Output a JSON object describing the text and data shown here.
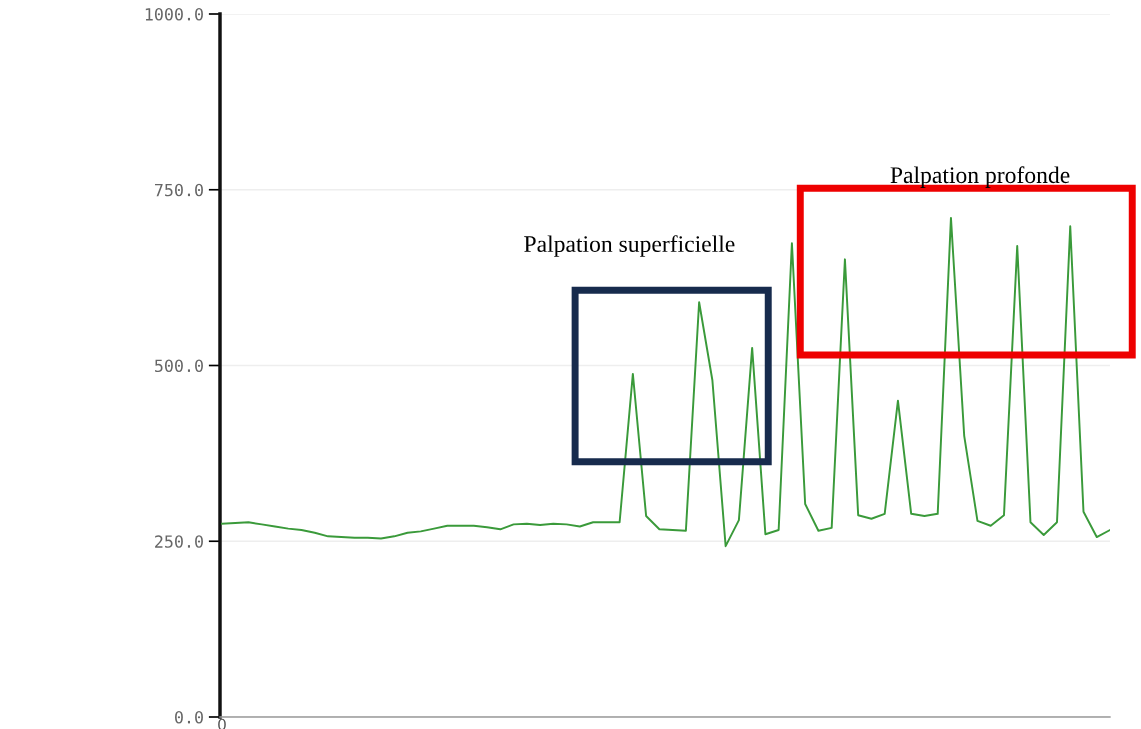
{
  "chart_data": {
    "type": "line",
    "categories": [
      "0",
      null,
      null,
      null,
      null,
      null,
      null,
      null,
      null,
      null,
      null,
      null,
      null,
      null,
      null,
      null,
      null,
      null,
      null,
      null,
      null,
      null,
      null,
      null,
      null,
      null,
      null,
      null,
      null,
      null,
      null,
      null,
      null,
      null,
      null,
      null,
      null,
      null,
      null,
      null,
      null,
      null,
      null,
      null,
      null,
      null,
      null,
      null,
      null,
      null,
      null,
      null,
      null,
      null,
      null,
      null,
      null,
      null,
      null,
      null,
      null,
      null,
      null,
      null,
      null,
      null,
      null,
      null
    ],
    "series": [
      {
        "color": "#3a9a3a",
        "values": [
          275,
          276,
          277,
          274,
          271,
          268,
          266,
          262,
          257,
          256,
          255,
          255,
          254,
          257,
          262,
          264,
          268,
          272,
          272,
          272,
          270,
          267,
          274,
          275,
          273,
          275,
          274,
          271,
          277,
          277,
          277,
          488,
          286,
          267,
          266,
          265,
          590,
          479,
          243,
          280,
          525,
          260,
          266,
          674,
          303,
          265,
          269,
          651,
          287,
          282,
          289,
          450,
          289,
          286,
          289,
          710,
          400,
          279,
          272,
          287,
          670,
          277,
          259,
          277,
          698,
          292,
          256,
          266
        ]
      }
    ],
    "ylim": [
      0,
      1000
    ],
    "yticks": [
      {
        "value": 0,
        "label": "0.0"
      },
      {
        "value": 250,
        "label": "250.0"
      },
      {
        "value": 500,
        "label": "500.0"
      },
      {
        "value": 750,
        "label": "750.0"
      },
      {
        "value": 1000,
        "label": "1000.0"
      }
    ],
    "grid": "y",
    "annotations": [
      "Palpation superficielle",
      "Palpation profonde"
    ]
  }
}
